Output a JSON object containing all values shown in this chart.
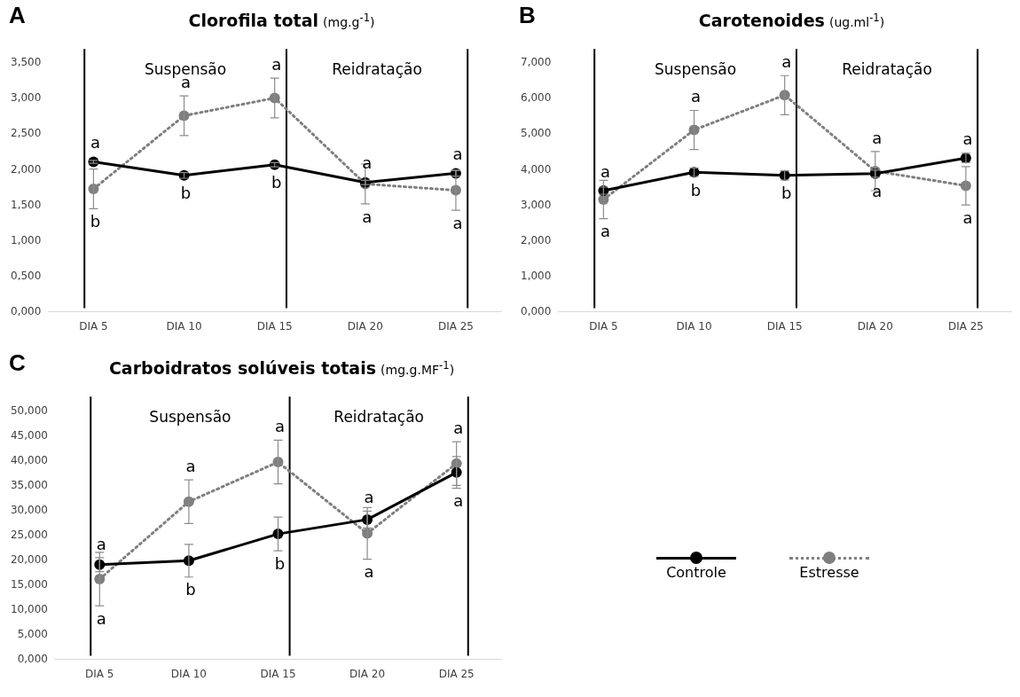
{
  "chart_data": [
    {
      "type": "line",
      "title": "Clorofila total",
      "subtitle": "(mg.g$^{-1}$)",
      "categories": [
        "DIA 5",
        "DIA 10",
        "DIA 15",
        "DIA 20",
        "DIA 25"
      ],
      "series": [
        {
          "color": "#000000",
          "line_style": "solid",
          "values": [
            2.11,
            1.92,
            2.07,
            1.82,
            1.95
          ],
          "errors": [
            0.02,
            0.04,
            0.03,
            0.03,
            0.04
          ],
          "value_labels": [
            "a",
            "b",
            "b",
            "a",
            "a"
          ]
        },
        {
          "color": "#7f7f7f",
          "line_style": "dotted",
          "values": [
            1.73,
            2.76,
            3.01,
            1.8,
            1.71
          ],
          "errors": [
            0.28,
            0.28,
            0.28,
            0.28,
            0.28
          ],
          "value_labels": [
            "b",
            "a",
            "a",
            "a",
            "a"
          ]
        }
      ],
      "marker": "circle",
      "grid": false,
      "ylim": [
        0,
        3.7
      ],
      "yticks": [
        {
          "value": 0,
          "label": "0,000"
        },
        {
          "value": 0.5,
          "label": "0,500"
        },
        {
          "value": 1,
          "label": "1,000"
        },
        {
          "value": 1.5,
          "label": "1,500"
        },
        {
          "value": 2,
          "label": "2,000"
        },
        {
          "value": 2.5,
          "label": "2,500"
        },
        {
          "value": 3,
          "label": "3,000"
        },
        {
          "value": 3.5,
          "label": "3,500"
        }
      ],
      "ref_lines": [
        {
          "axis": "x",
          "value": "DIA 5"
        },
        {
          "axis": "x",
          "value": "DIA 15"
        },
        {
          "axis": "x",
          "value": "DIA 25"
        }
      ],
      "annotations": [
        "A",
        "Suspensão",
        "Reidratação"
      ]
    },
    {
      "type": "line",
      "title": "Carotenoides",
      "subtitle": "(ug.ml$^{-1}$)",
      "categories": [
        "DIA 5",
        "DIA 10",
        "DIA 15",
        "DIA 20",
        "DIA 25"
      ],
      "series": [
        {
          "color": "#000000",
          "line_style": "solid",
          "values": [
            3.41,
            3.93,
            3.84,
            3.89,
            4.33
          ],
          "errors": [
            0.1,
            0.12,
            0.13,
            0.1,
            0.13
          ],
          "value_labels": [
            "a",
            "b",
            "b",
            "a",
            "a"
          ]
        },
        {
          "color": "#7f7f7f",
          "line_style": "dotted",
          "values": [
            3.16,
            5.12,
            6.1,
            3.96,
            3.55
          ],
          "errors": [
            0.54,
            0.55,
            0.55,
            0.55,
            0.54
          ],
          "value_labels": [
            "a",
            "a",
            "a",
            "a",
            "a"
          ]
        }
      ],
      "marker": "circle",
      "grid": false,
      "ylim": [
        0,
        7.4
      ],
      "yticks": [
        {
          "value": 0,
          "label": "0,000"
        },
        {
          "value": 1,
          "label": "1,000"
        },
        {
          "value": 2,
          "label": "2,000"
        },
        {
          "value": 3,
          "label": "3,000"
        },
        {
          "value": 4,
          "label": "4,000"
        },
        {
          "value": 5,
          "label": "5,000"
        },
        {
          "value": 6,
          "label": "6,000"
        },
        {
          "value": 7,
          "label": "7,000"
        }
      ],
      "ref_lines": [
        {
          "axis": "x",
          "value": "DIA 5"
        },
        {
          "axis": "x",
          "value": "DIA 15"
        },
        {
          "axis": "x",
          "value": "DIA 25"
        }
      ],
      "annotations": [
        "B",
        "Suspensão",
        "Reidratação"
      ]
    },
    {
      "type": "line",
      "title": "Carboidratos solúveis totais",
      "subtitle": "(mg.g.MF$^{-1}$)",
      "categories": [
        "DIA 5",
        "DIA 10",
        "DIA 15",
        "DIA 20",
        "DIA 25"
      ],
      "series": [
        {
          "name": "Controle",
          "color": "#000000",
          "line_style": "solid",
          "values": [
            19.1,
            19.9,
            25.3,
            28.2,
            37.7
          ],
          "errors": [
            1.4,
            3.3,
            3.4,
            1.7,
            3.2
          ],
          "value_labels": [
            "a",
            "b",
            "b",
            "a",
            "a"
          ]
        },
        {
          "name": "Estresse",
          "color": "#7f7f7f",
          "line_style": "dotted",
          "values": [
            16.2,
            31.8,
            39.8,
            25.4,
            39.5
          ],
          "errors": [
            5.4,
            4.4,
            4.4,
            5.2,
            4.4
          ],
          "value_labels": [
            "a",
            "a",
            "a",
            "a",
            "a"
          ]
        }
      ],
      "marker": "circle",
      "grid": false,
      "legend": "right",
      "ylim": [
        0,
        53
      ],
      "yticks": [
        {
          "value": 0,
          "label": "0,000"
        },
        {
          "value": 5,
          "label": "5,000"
        },
        {
          "value": 10,
          "label": "10,000"
        },
        {
          "value": 15,
          "label": "15,000"
        },
        {
          "value": 20,
          "label": "20,000"
        },
        {
          "value": 25,
          "label": "25,000"
        },
        {
          "value": 30,
          "label": "30,000"
        },
        {
          "value": 35,
          "label": "35,000"
        },
        {
          "value": 40,
          "label": "40,000"
        },
        {
          "value": 45,
          "label": "45,000"
        },
        {
          "value": 50,
          "label": "50,000"
        }
      ],
      "ref_lines": [
        {
          "axis": "x",
          "value": "DIA 5"
        },
        {
          "axis": "x",
          "value": "DIA 15"
        },
        {
          "axis": "x",
          "value": "DIA 25"
        }
      ],
      "annotations": [
        "C",
        "Suspensão",
        "Reidratação"
      ]
    }
  ]
}
